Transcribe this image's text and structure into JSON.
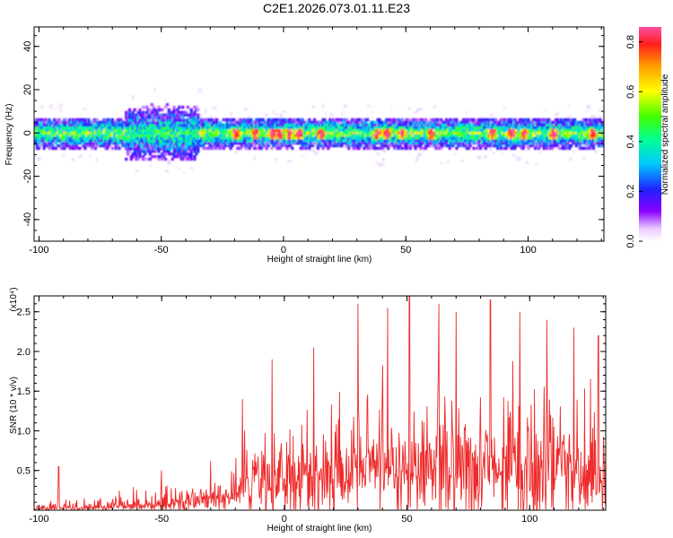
{
  "title": "C2E1.2026.073.01.11.E23",
  "chart_data": [
    {
      "type": "heatmap",
      "xlabel": "Height of straight line (km)",
      "ylabel": "Frequency (Hz)",
      "xlim": [
        -102,
        131
      ],
      "ylim": [
        -50,
        49
      ],
      "x_ticks": [
        -100,
        -50,
        0,
        50,
        100
      ],
      "y_ticks": [
        -40,
        -20,
        0,
        20,
        40
      ],
      "colorbar": {
        "label": "Normalized spectral amplitude",
        "range": [
          0.0,
          0.86
        ],
        "ticks": [
          "0.0",
          "0.2",
          "0.4",
          "0.6",
          "0.8"
        ]
      },
      "band": {
        "center_hz": 0,
        "core_halfwidth_hz": 6,
        "disturbed_region_km": [
          -65,
          -35
        ],
        "disturbed_extent_hz": [
          -12,
          14
        ],
        "peak_heights_km": [
          -20,
          -12,
          -5,
          -2,
          2,
          6,
          15,
          38,
          42,
          48,
          60,
          85,
          93,
          98,
          110,
          126
        ]
      },
      "grid": false
    },
    {
      "type": "line",
      "xlabel": "Height of straight line (km)",
      "ylabel": "SNR (10 * v/v)",
      "y_multiplier_label": "(x10⁴)",
      "xlim": [
        -102,
        131
      ],
      "ylim": [
        0,
        2.7
      ],
      "x_ticks": [
        -100,
        -50,
        0,
        50,
        100
      ],
      "y_ticks": [
        "0.5",
        "1.0",
        "1.5",
        "2.0",
        "2.5"
      ],
      "series_color": "#ee2a2a",
      "envelope": [
        {
          "x": -102,
          "base": 0.02,
          "amp": 0.12
        },
        {
          "x": -90,
          "base": 0.03,
          "amp": 0.15
        },
        {
          "x": -75,
          "base": 0.05,
          "amp": 0.2
        },
        {
          "x": -55,
          "base": 0.1,
          "amp": 0.3
        },
        {
          "x": -35,
          "base": 0.2,
          "amp": 0.35
        },
        {
          "x": -20,
          "base": 0.3,
          "amp": 0.5
        },
        {
          "x": -15,
          "base": 0.5,
          "amp": 0.9
        },
        {
          "x": 0,
          "base": 0.7,
          "amp": 0.8
        },
        {
          "x": 15,
          "base": 0.75,
          "amp": 1.0
        },
        {
          "x": 30,
          "base": 0.8,
          "amp": 1.3
        },
        {
          "x": 50,
          "base": 0.85,
          "amp": 1.5
        },
        {
          "x": 80,
          "base": 0.85,
          "amp": 1.4
        },
        {
          "x": 110,
          "base": 0.8,
          "amp": 1.3
        },
        {
          "x": 131,
          "base": 0.8,
          "amp": 1.2
        }
      ],
      "spikes": [
        {
          "x": -92,
          "y": 0.55
        },
        {
          "x": -50,
          "y": 0.5
        },
        {
          "x": -30,
          "y": 0.62
        },
        {
          "x": -17,
          "y": 1.4
        },
        {
          "x": -5,
          "y": 1.9
        },
        {
          "x": 12,
          "y": 2.05
        },
        {
          "x": 30,
          "y": 2.6
        },
        {
          "x": 42,
          "y": 2.55
        },
        {
          "x": 51,
          "y": 2.72
        },
        {
          "x": 63,
          "y": 2.6
        },
        {
          "x": 70,
          "y": 2.5
        },
        {
          "x": 84,
          "y": 2.65
        },
        {
          "x": 96,
          "y": 2.5
        },
        {
          "x": 107,
          "y": 2.4
        },
        {
          "x": 118,
          "y": 2.3
        },
        {
          "x": 128,
          "y": 2.2
        }
      ],
      "grid": false
    }
  ]
}
